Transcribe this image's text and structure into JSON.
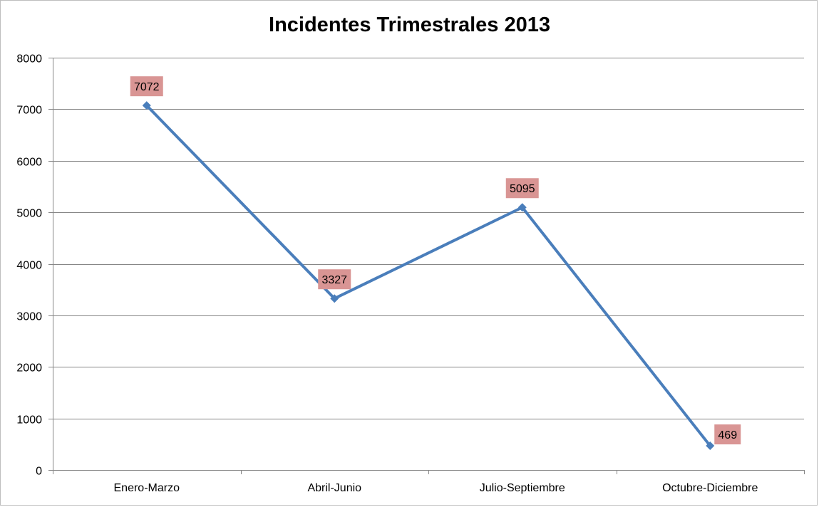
{
  "chart_data": {
    "type": "line",
    "title": "Incidentes Trimestrales 2013",
    "categories": [
      "Enero-Marzo",
      "Abril-Junio",
      "Julio-Septiembre",
      "Octubre-Diciembre"
    ],
    "series": [
      {
        "values": [
          7072,
          3327,
          5095,
          469
        ],
        "color": "#4a7ebb",
        "marker": "diamond"
      }
    ],
    "data_labels": [
      "7072",
      "3327",
      "5095",
      "469"
    ],
    "data_label_background": "#d99594",
    "ylim": [
      0,
      8000
    ],
    "yticks": [
      0,
      1000,
      2000,
      3000,
      4000,
      5000,
      6000,
      7000,
      8000
    ],
    "grid": true,
    "gridline_color": "#868686",
    "legend": "none"
  }
}
